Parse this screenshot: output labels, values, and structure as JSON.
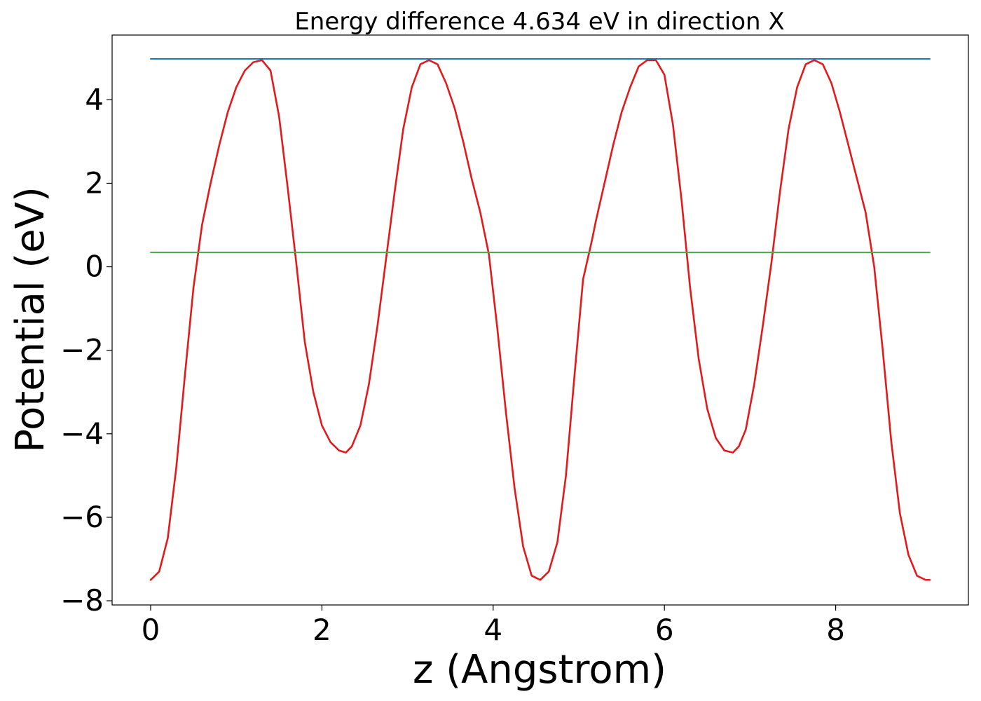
{
  "chart_data": {
    "type": "line",
    "title": "Energy difference 4.634 eV in direction X",
    "xlabel": "z (Angstrom)",
    "ylabel": "Potential (eV)",
    "xlim": [
      -0.45,
      9.55
    ],
    "ylim": [
      -8.1,
      5.55
    ],
    "xticks": [
      0,
      2,
      4,
      6,
      8
    ],
    "xtick_labels": [
      "0",
      "2",
      "4",
      "6",
      "8"
    ],
    "yticks": [
      -8,
      -6,
      -4,
      -2,
      0,
      2,
      4
    ],
    "ytick_labels": [
      "−8",
      "−6",
      "−4",
      "−2",
      "0",
      "2",
      "4"
    ],
    "grid": false,
    "legend": "none",
    "series": [
      {
        "color": "#e31a1c",
        "x": [
          0.0,
          0.1,
          0.2,
          0.3,
          0.4,
          0.5,
          0.6,
          0.7,
          0.8,
          0.9,
          1.0,
          1.1,
          1.2,
          1.3,
          1.4,
          1.5,
          1.6,
          1.7,
          1.8,
          1.9,
          2.0,
          2.1,
          2.2,
          2.28,
          2.35,
          2.45,
          2.55,
          2.65,
          2.75,
          2.85,
          2.95,
          3.05,
          3.15,
          3.25,
          3.35,
          3.45,
          3.55,
          3.65,
          3.75,
          3.85,
          3.95,
          4.05,
          4.15,
          4.25,
          4.35,
          4.45,
          4.55,
          4.65,
          4.75,
          4.85,
          4.95,
          5.05,
          5.15,
          5.2,
          5.3,
          5.4,
          5.5,
          5.6,
          5.7,
          5.8,
          5.9,
          6.0,
          6.1,
          6.2,
          6.3,
          6.4,
          6.5,
          6.6,
          6.7,
          6.8,
          6.87,
          6.95,
          7.05,
          7.15,
          7.25,
          7.35,
          7.45,
          7.55,
          7.65,
          7.75,
          7.85,
          7.95,
          8.05,
          8.15,
          8.25,
          8.35,
          8.45,
          8.55,
          8.65,
          8.75,
          8.85,
          8.95,
          9.05,
          9.1
        ],
        "values": [
          -7.5,
          -7.3,
          -6.5,
          -4.8,
          -2.6,
          -0.5,
          1.0,
          2.0,
          2.9,
          3.7,
          4.3,
          4.7,
          4.9,
          4.95,
          4.7,
          3.6,
          1.9,
          0.1,
          -1.8,
          -3.0,
          -3.8,
          -4.2,
          -4.4,
          -4.45,
          -4.3,
          -3.8,
          -2.8,
          -1.4,
          0.2,
          1.8,
          3.3,
          4.3,
          4.85,
          4.95,
          4.85,
          4.4,
          3.8,
          3.0,
          2.1,
          1.3,
          0.3,
          -1.5,
          -3.5,
          -5.3,
          -6.7,
          -7.4,
          -7.5,
          -7.3,
          -6.6,
          -5.0,
          -2.6,
          -0.3,
          0.6,
          1.1,
          2.0,
          2.9,
          3.7,
          4.3,
          4.8,
          4.95,
          4.95,
          4.6,
          3.4,
          1.6,
          -0.5,
          -2.2,
          -3.4,
          -4.1,
          -4.4,
          -4.45,
          -4.3,
          -3.9,
          -2.8,
          -1.4,
          0.1,
          1.8,
          3.3,
          4.3,
          4.85,
          4.95,
          4.85,
          4.4,
          3.7,
          2.9,
          2.1,
          1.3,
          0.0,
          -2.0,
          -4.2,
          -5.9,
          -6.9,
          -7.4,
          -7.5,
          -7.5
        ]
      },
      {
        "color": "#1f77b4",
        "x": [
          0.0,
          9.1
        ],
        "values": [
          4.98,
          4.98
        ]
      },
      {
        "color": "#4daf4a",
        "x": [
          0.0,
          9.1
        ],
        "values": [
          0.346,
          0.346
        ]
      }
    ]
  }
}
